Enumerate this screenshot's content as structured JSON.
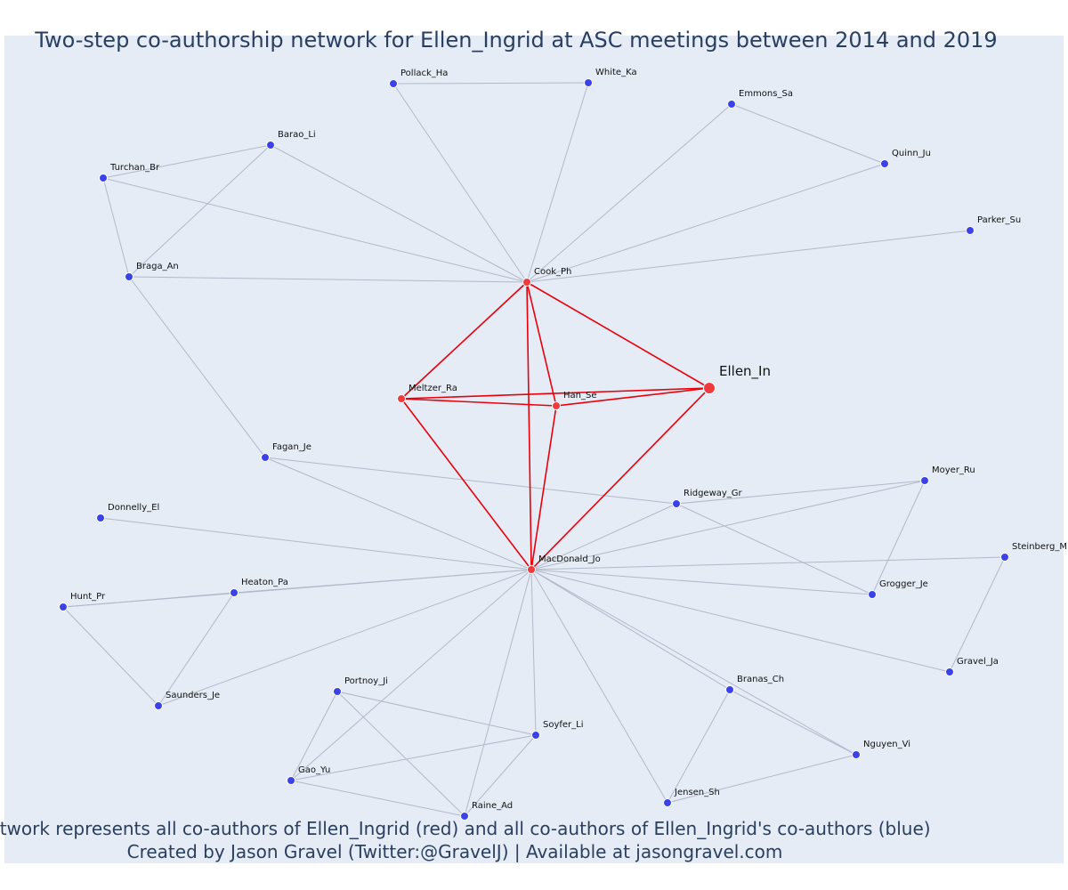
{
  "title": "Two-step co-authorship network for Ellen_Ingrid at ASC meetings between 2014 and 2019",
  "caption_line1": "Network represents all co-authors of Ellen_Ingrid (red) and all co-authors of Ellen_Ingrid's co-authors (blue)",
  "caption_line2": "Created by Jason Gravel (Twitter:@GravelJ) | Available at jasongravel.com",
  "colors": {
    "plot_bg": "#e5ecf6",
    "coauthor_node": "#ef3b3b",
    "second_step_node": "#3b43e8",
    "coauthor_edge": "#e8000b",
    "other_edge": "#b3b8c9",
    "text": "#2a3f5f"
  },
  "nodes": [
    {
      "id": "Ellen_In",
      "group": "focus"
    },
    {
      "id": "Cook_Ph",
      "group": "coauthor"
    },
    {
      "id": "Meltzer_Ra",
      "group": "coauthor"
    },
    {
      "id": "Han_Se",
      "group": "coauthor"
    },
    {
      "id": "MacDonald_Jo",
      "group": "coauthor"
    },
    {
      "id": "Pollack_Ha",
      "group": "second"
    },
    {
      "id": "White_Ka",
      "group": "second"
    },
    {
      "id": "Emmons_Sa",
      "group": "second"
    },
    {
      "id": "Quinn_Ju",
      "group": "second"
    },
    {
      "id": "Parker_Su",
      "group": "second"
    },
    {
      "id": "Barao_Li",
      "group": "second"
    },
    {
      "id": "Turchan_Br",
      "group": "second"
    },
    {
      "id": "Braga_An",
      "group": "second"
    },
    {
      "id": "Fagan_Je",
      "group": "second"
    },
    {
      "id": "Donnelly_El",
      "group": "second"
    },
    {
      "id": "Ridgeway_Gr",
      "group": "second"
    },
    {
      "id": "Moyer_Ru",
      "group": "second"
    },
    {
      "id": "Steinberg_M",
      "group": "second"
    },
    {
      "id": "Grogger_Je",
      "group": "second"
    },
    {
      "id": "Heaton_Pa",
      "group": "second"
    },
    {
      "id": "Hunt_Pr",
      "group": "second"
    },
    {
      "id": "Saunders_Je",
      "group": "second"
    },
    {
      "id": "Portnoy_Ji",
      "group": "second"
    },
    {
      "id": "Gravel_Ja",
      "group": "second"
    },
    {
      "id": "Branas_Ch",
      "group": "second"
    },
    {
      "id": "Soyfer_Li",
      "group": "second"
    },
    {
      "id": "Nguyen_Vi",
      "group": "second"
    },
    {
      "id": "Gao_Yu",
      "group": "second"
    },
    {
      "id": "Jensen_Sh",
      "group": "second"
    },
    {
      "id": "Raine_Ad",
      "group": "second"
    }
  ],
  "edges": [
    [
      "Ellen_In",
      "Cook_Ph"
    ],
    [
      "Ellen_In",
      "Meltzer_Ra"
    ],
    [
      "Ellen_In",
      "Han_Se"
    ],
    [
      "Ellen_In",
      "MacDonald_Jo"
    ],
    [
      "Cook_Ph",
      "Meltzer_Ra"
    ],
    [
      "Cook_Ph",
      "Han_Se"
    ],
    [
      "Cook_Ph",
      "MacDonald_Jo"
    ],
    [
      "Meltzer_Ra",
      "Han_Se"
    ],
    [
      "Meltzer_Ra",
      "MacDonald_Jo"
    ],
    [
      "Han_Se",
      "MacDonald_Jo"
    ],
    [
      "Cook_Ph",
      "Pollack_Ha"
    ],
    [
      "Cook_Ph",
      "White_Ka"
    ],
    [
      "Pollack_Ha",
      "White_Ka"
    ],
    [
      "Cook_Ph",
      "Emmons_Sa"
    ],
    [
      "Emmons_Sa",
      "Quinn_Ju"
    ],
    [
      "Cook_Ph",
      "Quinn_Ju"
    ],
    [
      "Cook_Ph",
      "Parker_Su"
    ],
    [
      "Cook_Ph",
      "Barao_Li"
    ],
    [
      "Cook_Ph",
      "Turchan_Br"
    ],
    [
      "Cook_Ph",
      "Braga_An"
    ],
    [
      "Turchan_Br",
      "Barao_Li"
    ],
    [
      "Turchan_Br",
      "Braga_An"
    ],
    [
      "Barao_Li",
      "Braga_An"
    ],
    [
      "Braga_An",
      "Fagan_Je"
    ],
    [
      "Fagan_Je",
      "MacDonald_Jo"
    ],
    [
      "Fagan_Je",
      "Ridgeway_Gr"
    ],
    [
      "MacDonald_Jo",
      "Donnelly_El"
    ],
    [
      "MacDonald_Jo",
      "Ridgeway_Gr"
    ],
    [
      "MacDonald_Jo",
      "Moyer_Ru"
    ],
    [
      "MacDonald_Jo",
      "Steinberg_M"
    ],
    [
      "MacDonald_Jo",
      "Grogger_Je"
    ],
    [
      "MacDonald_Jo",
      "Heaton_Pa"
    ],
    [
      "MacDonald_Jo",
      "Hunt_Pr"
    ],
    [
      "MacDonald_Jo",
      "Saunders_Je"
    ],
    [
      "MacDonald_Jo",
      "Gravel_Ja"
    ],
    [
      "MacDonald_Jo",
      "Branas_Ch"
    ],
    [
      "MacDonald_Jo",
      "Nguyen_Vi"
    ],
    [
      "MacDonald_Jo",
      "Jensen_Sh"
    ],
    [
      "MacDonald_Jo",
      "Soyfer_Li"
    ],
    [
      "MacDonald_Jo",
      "Raine_Ad"
    ],
    [
      "MacDonald_Jo",
      "Gao_Yu"
    ],
    [
      "Ridgeway_Gr",
      "Moyer_Ru"
    ],
    [
      "Ridgeway_Gr",
      "Grogger_Je"
    ],
    [
      "Moyer_Ru",
      "Grogger_Je"
    ],
    [
      "Steinberg_M",
      "Gravel_Ja"
    ],
    [
      "Hunt_Pr",
      "Heaton_Pa"
    ],
    [
      "Hunt_Pr",
      "Saunders_Je"
    ],
    [
      "Heaton_Pa",
      "Saunders_Je"
    ],
    [
      "Portnoy_Ji",
      "Gao_Yu"
    ],
    [
      "Portnoy_Ji",
      "Soyfer_Li"
    ],
    [
      "Portnoy_Ji",
      "Raine_Ad"
    ],
    [
      "Gao_Yu",
      "Soyfer_Li"
    ],
    [
      "Gao_Yu",
      "Raine_Ad"
    ],
    [
      "Soyfer_Li",
      "Raine_Ad"
    ],
    [
      "Branas_Ch",
      "Nguyen_Vi"
    ],
    [
      "Branas_Ch",
      "Jensen_Sh"
    ],
    [
      "Nguyen_Vi",
      "Jensen_Sh"
    ]
  ]
}
